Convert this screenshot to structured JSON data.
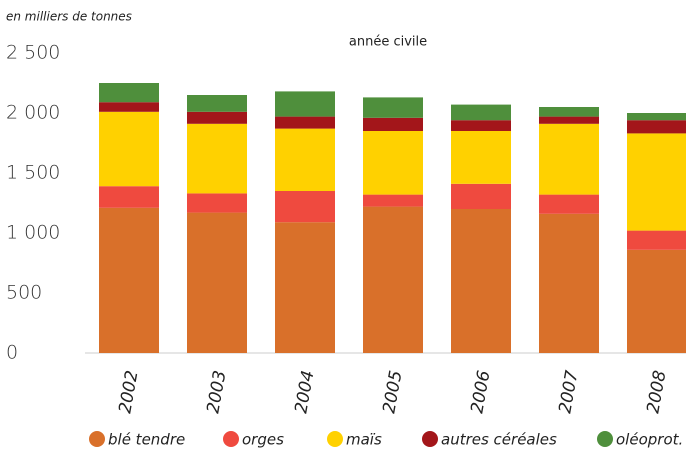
{
  "chart_data": {
    "type": "stacked_bar",
    "y_axis_label": "en milliers de tonnes",
    "subtitle": "année civile",
    "categories": [
      "2002",
      "2003",
      "2004",
      "2005",
      "2006",
      "2007",
      "2008"
    ],
    "series": [
      {
        "name": "blé tendre",
        "color": "#d9702a",
        "values": [
          1210,
          1170,
          1090,
          1220,
          1200,
          1160,
          860
        ]
      },
      {
        "name": "orges",
        "color": "#ef4a3f",
        "values": [
          180,
          160,
          260,
          100,
          210,
          160,
          160
        ]
      },
      {
        "name": "maïs",
        "color": "#ffd100",
        "values": [
          620,
          580,
          520,
          530,
          440,
          590,
          810
        ]
      },
      {
        "name": "autres céréales",
        "color": "#a3161a",
        "values": [
          80,
          100,
          100,
          110,
          90,
          60,
          110
        ]
      },
      {
        "name": "oléoprot.",
        "color": "#4f8f3c",
        "values": [
          160,
          140,
          210,
          170,
          130,
          80,
          60
        ]
      }
    ],
    "ylim": [
      0,
      2500
    ],
    "yticks": [
      0,
      500,
      {
        "value": 1000,
        "label": "1 000"
      },
      {
        "value": 1500,
        "label": "1 500"
      },
      {
        "value": 2000,
        "label": "2 000"
      },
      {
        "value": 2500,
        "label": "2 500"
      }
    ]
  }
}
